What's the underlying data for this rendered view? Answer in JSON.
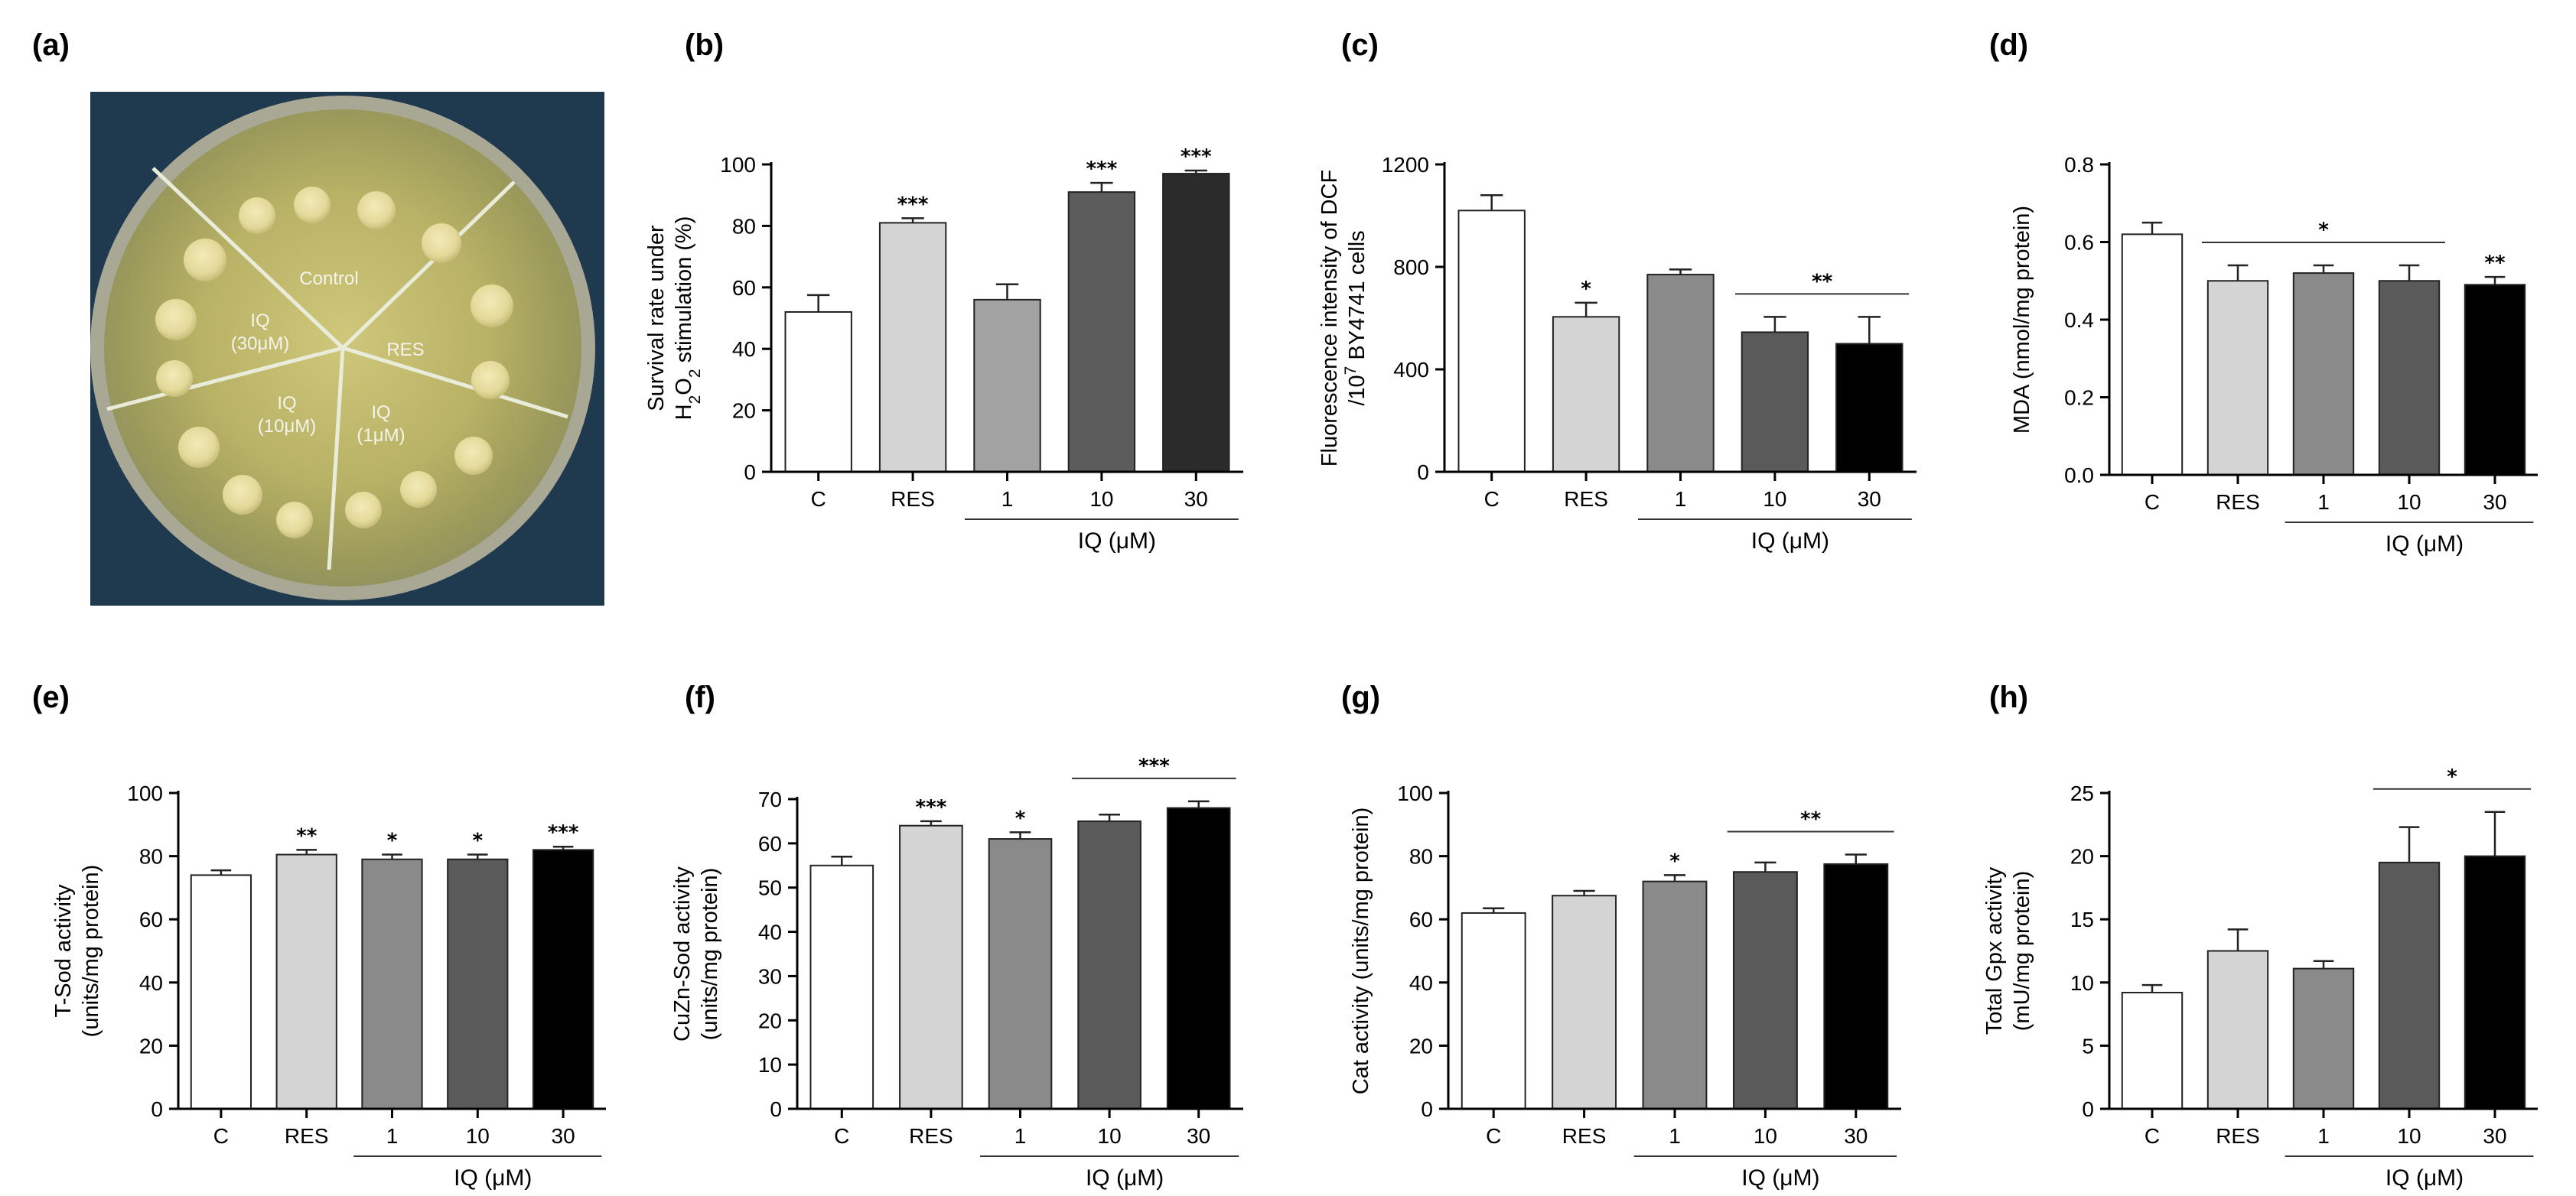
{
  "figure": {
    "panel_a": {
      "label": "(a)",
      "sectors": [
        "Control",
        "RES",
        "IQ\n(1μM)",
        "IQ\n(10μM)",
        "IQ\n(30μM)"
      ]
    }
  },
  "chart_data": [
    {
      "id": "b",
      "label": "(b)",
      "type": "bar",
      "categories": [
        "C",
        "RES",
        "1",
        "10",
        "30"
      ],
      "values": [
        52,
        81,
        56,
        91,
        97
      ],
      "errors": [
        5.5,
        1.5,
        5,
        3,
        1
      ],
      "colors": [
        "#ffffff",
        "#d4d4d4",
        "#a2a2a2",
        "#5c5c5c",
        "#2b2b2b"
      ],
      "significance": [
        "",
        "***",
        "",
        "***",
        "***"
      ],
      "group_bars": [],
      "ylabel": [
        "Survival rate under",
        "H2O2 stimulation (%)"
      ],
      "ylim": [
        0,
        100
      ],
      "yticks": [
        0,
        20,
        40,
        60,
        80,
        100
      ],
      "group_label": "IQ (μM)"
    },
    {
      "id": "c",
      "label": "(c)",
      "type": "bar",
      "categories": [
        "C",
        "RES",
        "1",
        "10",
        "30"
      ],
      "values": [
        1020,
        605,
        770,
        545,
        500
      ],
      "errors": [
        60,
        55,
        20,
        60,
        105
      ],
      "colors": [
        "#ffffff",
        "#d4d4d4",
        "#8a8a8a",
        "#5a5a5a",
        "#000000"
      ],
      "significance": [
        "",
        "*",
        "",
        "",
        ""
      ],
      "group_bars": [
        {
          "from": 3,
          "to": 4,
          "text": "**"
        }
      ],
      "ylabel": [
        "Fluorescence intensity of DCF",
        "/10^7 BY4741 cells"
      ],
      "ylim": [
        0,
        1200
      ],
      "yticks": [
        0,
        400,
        800,
        1200
      ],
      "group_label": "IQ (μM)"
    },
    {
      "id": "d",
      "label": "(d)",
      "type": "bar",
      "categories": [
        "C",
        "RES",
        "1",
        "10",
        "30"
      ],
      "values": [
        0.62,
        0.5,
        0.52,
        0.5,
        0.49
      ],
      "errors": [
        0.03,
        0.04,
        0.02,
        0.04,
        0.02
      ],
      "colors": [
        "#ffffff",
        "#d4d4d4",
        "#8a8a8a",
        "#5a5a5a",
        "#000000"
      ],
      "significance": [
        "",
        "",
        "",
        "",
        "**"
      ],
      "group_bars": [
        {
          "from": 1,
          "to": 3,
          "text": "*"
        }
      ],
      "ylabel": [
        "MDA  (nmol/mg protein)"
      ],
      "ylim": [
        0,
        0.8
      ],
      "yticks": [
        0.0,
        0.2,
        0.4,
        0.6,
        0.8
      ],
      "ytick_decimals": 1,
      "group_label": "IQ (μM)"
    },
    {
      "id": "e",
      "label": "(e)",
      "type": "bar",
      "categories": [
        "C",
        "RES",
        "1",
        "10",
        "30"
      ],
      "values": [
        74,
        80.5,
        79,
        79,
        82
      ],
      "errors": [
        1.5,
        1.5,
        1.5,
        1.5,
        1
      ],
      "colors": [
        "#ffffff",
        "#d4d4d4",
        "#8a8a8a",
        "#5a5a5a",
        "#000000"
      ],
      "significance": [
        "",
        "**",
        "*",
        "*",
        "***"
      ],
      "group_bars": [],
      "ylabel": [
        "T-Sod activity",
        "(units/mg protein)"
      ],
      "ylim": [
        0,
        100
      ],
      "yticks": [
        0,
        20,
        40,
        60,
        80,
        100
      ],
      "group_label": "IQ (μM)"
    },
    {
      "id": "f",
      "label": "(f)",
      "type": "bar",
      "categories": [
        "C",
        "RES",
        "1",
        "10",
        "30"
      ],
      "values": [
        55,
        64,
        61,
        65,
        68
      ],
      "errors": [
        2,
        1,
        1.5,
        1.5,
        1.5
      ],
      "colors": [
        "#ffffff",
        "#d4d4d4",
        "#8a8a8a",
        "#5a5a5a",
        "#000000"
      ],
      "significance": [
        "",
        "***",
        "*",
        "",
        ""
      ],
      "group_bars": [
        {
          "from": 3,
          "to": 4,
          "text": "***"
        }
      ],
      "ylabel": [
        "CuZn-Sod activity",
        "(units/mg protein)"
      ],
      "ylim": [
        0,
        70
      ],
      "yticks": [
        0,
        10,
        20,
        30,
        40,
        50,
        60,
        70
      ],
      "group_label": "IQ (μM)"
    },
    {
      "id": "g",
      "label": "(g)",
      "type": "bar",
      "categories": [
        "C",
        "RES",
        "1",
        "10",
        "30"
      ],
      "values": [
        62,
        67.5,
        72,
        75,
        77.5
      ],
      "errors": [
        1.5,
        1.5,
        2,
        3,
        3
      ],
      "colors": [
        "#ffffff",
        "#d4d4d4",
        "#8a8a8a",
        "#5a5a5a",
        "#000000"
      ],
      "significance": [
        "",
        "",
        "*",
        "",
        ""
      ],
      "group_bars": [
        {
          "from": 3,
          "to": 4,
          "text": "**"
        }
      ],
      "ylabel": [
        "Cat activity (units/mg protein)"
      ],
      "ylim": [
        0,
        100
      ],
      "yticks": [
        0,
        20,
        40,
        60,
        80,
        100
      ],
      "group_label": "IQ (μM)"
    },
    {
      "id": "h",
      "label": "(h)",
      "type": "bar",
      "categories": [
        "C",
        "RES",
        "1",
        "10",
        "30"
      ],
      "values": [
        9.2,
        12.5,
        11.1,
        19.5,
        20
      ],
      "errors": [
        0.6,
        1.7,
        0.6,
        2.8,
        3.5
      ],
      "colors": [
        "#ffffff",
        "#d4d4d4",
        "#8a8a8a",
        "#5a5a5a",
        "#000000"
      ],
      "significance": [
        "",
        "",
        "",
        "",
        ""
      ],
      "group_bars": [
        {
          "from": 3,
          "to": 4,
          "text": "*"
        }
      ],
      "ylabel": [
        "Total Gpx activity",
        "(mU/mg protein)"
      ],
      "ylim": [
        0,
        25
      ],
      "yticks": [
        0,
        5,
        10,
        15,
        20,
        25
      ],
      "group_label": "IQ (μM)"
    }
  ]
}
